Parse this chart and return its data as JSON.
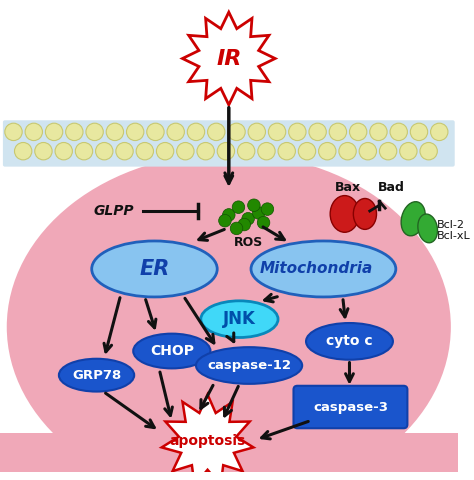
{
  "ir_label": "IR",
  "ir_color": "#cc0000",
  "glpp_label": "GLPP",
  "ros_label": "ROS",
  "ros_dot_color": "#228800",
  "er_label": "ER",
  "mito_label": "Mitochondria",
  "jnk_label": "JNK",
  "chop_label": "CHOP",
  "grp78_label": "GRP78",
  "casp12_label": "caspase-12",
  "cytoc_label": "cyto c",
  "casp3_label": "caspase-3",
  "apoptosis_label": "apoptosis",
  "bax_label": "Bax",
  "bad_label": "Bad",
  "bcl2_label": "Bcl-2\nBcl-xL",
  "cell_fill": "#f0a8b8",
  "mem_fill": "#e8e8a0",
  "mem_edge": "#c8c870",
  "mem_band": "#d0e4f0",
  "ellipse_light": "#88c4f0",
  "ellipse_dark": "#1a55cc",
  "ellipse_cyan": "#40d8f8",
  "rect_dark": "#1a55cc",
  "bax_color": "#cc1a1a",
  "bcl2_color": "#33aa33",
  "arrow_color": "#111111",
  "white": "#ffffff"
}
